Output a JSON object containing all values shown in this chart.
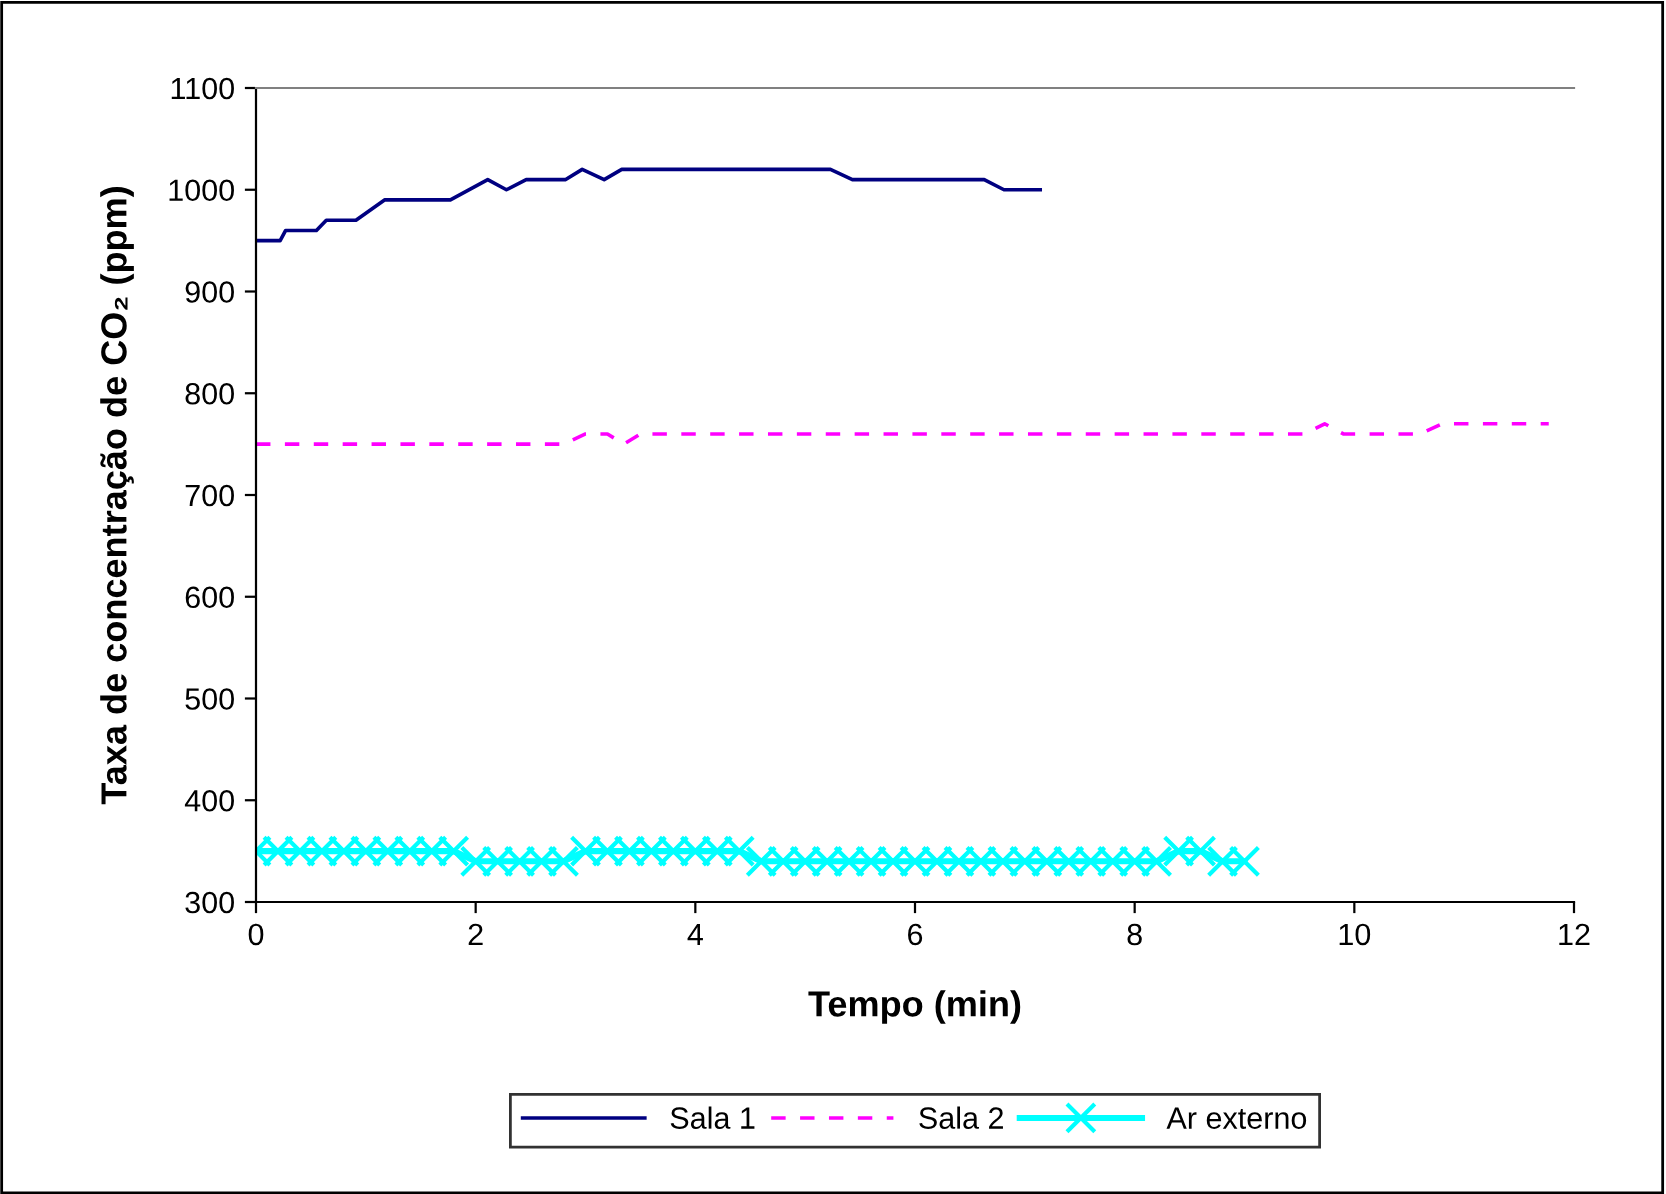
{
  "chart_data": {
    "type": "line",
    "xlabel": "Tempo (min)",
    "ylabel": "Taxa de concentração de CO₂ (ppm)",
    "xlim": [
      0,
      12
    ],
    "ylim": [
      300,
      1100
    ],
    "xticks": [
      0,
      2,
      4,
      6,
      8,
      10,
      12
    ],
    "yticks": [
      300,
      400,
      500,
      600,
      700,
      800,
      900,
      1000,
      1100
    ],
    "grid": false,
    "legend": "bottom",
    "series": [
      {
        "name": "Sala 1",
        "color": "#000080",
        "line_style": "solid",
        "marker": "none",
        "x": [
          0,
          0.22,
          0.27,
          0.55,
          0.64,
          0.91,
          1.17,
          1.77,
          2.11,
          2.28,
          2.46,
          2.82,
          2.97,
          3.17,
          3.33,
          5.23,
          5.43,
          6.63,
          6.81,
          7.14
        ],
        "values": [
          950,
          950,
          960,
          960,
          970,
          970,
          990,
          990,
          1010,
          1000,
          1010,
          1010,
          1020,
          1010,
          1020,
          1020,
          1010,
          1010,
          1000,
          1000
        ]
      },
      {
        "name": "Sala 2",
        "color": "#ff00ff",
        "line_style": "dashed",
        "marker": "none",
        "x": [
          0,
          2.8,
          3.0,
          3.2,
          3.35,
          3.5,
          9.55,
          9.73,
          9.9,
          10.6,
          10.8,
          11.77
        ],
        "values": [
          750,
          750,
          760,
          760,
          750,
          760,
          760,
          770,
          760,
          760,
          770,
          770
        ]
      },
      {
        "name": "Ar externo",
        "color": "#00ffff",
        "line_style": "solid",
        "marker": "cross",
        "x": [
          0,
          0.2,
          0.4,
          0.6,
          0.8,
          1.0,
          1.2,
          1.4,
          1.6,
          1.8,
          2.0,
          2.2,
          2.4,
          2.6,
          2.8,
          3.0,
          3.2,
          3.4,
          3.6,
          3.8,
          4.0,
          4.2,
          4.4,
          4.6,
          4.8,
          5.0,
          5.2,
          5.4,
          5.6,
          5.8,
          6.0,
          6.2,
          6.4,
          6.6,
          6.8,
          7.0,
          7.2,
          7.4,
          7.6,
          7.8,
          8.0,
          8.2,
          8.4,
          8.6,
          8.8,
          9.0
        ],
        "values": [
          350,
          350,
          350,
          350,
          350,
          350,
          350,
          350,
          350,
          350,
          340,
          340,
          340,
          340,
          340,
          350,
          350,
          350,
          350,
          350,
          350,
          350,
          350,
          340,
          340,
          340,
          340,
          340,
          340,
          340,
          340,
          340,
          340,
          340,
          340,
          340,
          340,
          340,
          340,
          340,
          340,
          340,
          350,
          350,
          340,
          340
        ]
      }
    ]
  }
}
